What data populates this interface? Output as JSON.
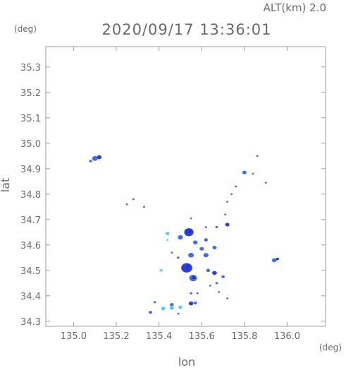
{
  "header": {
    "altitude_label": "ALT(km) 2.0",
    "datetime": "2020/09/17 13:36:01",
    "lat_unit": "(deg)",
    "lon_unit": "(deg)"
  },
  "axes": {
    "xlabel": "lon",
    "ylabel": "lat",
    "xlim": [
      134.87,
      136.18
    ],
    "ylim": [
      34.28,
      35.38
    ],
    "xticks": [
      "135.0",
      "135.2",
      "135.4",
      "135.6",
      "135.8",
      "136.0"
    ],
    "yticks": [
      "34.3",
      "34.4",
      "34.5",
      "34.6",
      "34.7",
      "34.8",
      "34.9",
      "35.0",
      "35.1",
      "35.2",
      "35.3"
    ],
    "grid": false
  },
  "chart_data": {
    "type": "radar-echo-map",
    "colors": {
      "light": "#5bc8f0",
      "mid": "#3f6ff0",
      "strong": "#2a3fe0",
      "dark": "#2632c8"
    },
    "echo_cells": [
      {
        "lon": 135.1,
        "lat": 34.94,
        "r": 0.013,
        "level": "mid"
      },
      {
        "lon": 135.12,
        "lat": 34.945,
        "r": 0.011,
        "level": "strong"
      },
      {
        "lon": 135.08,
        "lat": 34.93,
        "r": 0.007,
        "level": "mid"
      },
      {
        "lon": 135.8,
        "lat": 34.885,
        "r": 0.01,
        "level": "mid"
      },
      {
        "lon": 135.86,
        "lat": 34.95,
        "r": 0.004,
        "level": "mid"
      },
      {
        "lon": 135.84,
        "lat": 34.88,
        "r": 0.004,
        "level": "mid"
      },
      {
        "lon": 135.9,
        "lat": 34.845,
        "r": 0.004,
        "level": "mid"
      },
      {
        "lon": 135.76,
        "lat": 34.83,
        "r": 0.005,
        "level": "mid"
      },
      {
        "lon": 135.74,
        "lat": 34.8,
        "r": 0.004,
        "level": "mid"
      },
      {
        "lon": 135.72,
        "lat": 34.77,
        "r": 0.004,
        "level": "mid"
      },
      {
        "lon": 135.25,
        "lat": 34.76,
        "r": 0.004,
        "level": "mid"
      },
      {
        "lon": 135.28,
        "lat": 34.78,
        "r": 0.004,
        "level": "mid"
      },
      {
        "lon": 135.33,
        "lat": 34.75,
        "r": 0.004,
        "level": "mid"
      },
      {
        "lon": 135.71,
        "lat": 34.72,
        "r": 0.004,
        "level": "mid"
      },
      {
        "lon": 135.72,
        "lat": 34.68,
        "r": 0.01,
        "level": "strong"
      },
      {
        "lon": 135.67,
        "lat": 34.67,
        "r": 0.006,
        "level": "mid"
      },
      {
        "lon": 135.62,
        "lat": 34.67,
        "r": 0.005,
        "level": "mid"
      },
      {
        "lon": 135.55,
        "lat": 34.705,
        "r": 0.004,
        "level": "mid"
      },
      {
        "lon": 135.54,
        "lat": 34.65,
        "r": 0.022,
        "level": "strong"
      },
      {
        "lon": 135.5,
        "lat": 34.63,
        "r": 0.012,
        "level": "mid"
      },
      {
        "lon": 135.44,
        "lat": 34.645,
        "r": 0.009,
        "level": "light"
      },
      {
        "lon": 135.44,
        "lat": 34.62,
        "r": 0.004,
        "level": "light"
      },
      {
        "lon": 135.57,
        "lat": 34.61,
        "r": 0.011,
        "level": "mid"
      },
      {
        "lon": 135.62,
        "lat": 34.62,
        "r": 0.009,
        "level": "mid"
      },
      {
        "lon": 135.66,
        "lat": 34.59,
        "r": 0.01,
        "level": "mid"
      },
      {
        "lon": 135.6,
        "lat": 34.585,
        "r": 0.01,
        "level": "mid"
      },
      {
        "lon": 135.62,
        "lat": 34.56,
        "r": 0.012,
        "level": "mid"
      },
      {
        "lon": 135.55,
        "lat": 34.56,
        "r": 0.013,
        "level": "mid"
      },
      {
        "lon": 135.53,
        "lat": 34.51,
        "r": 0.026,
        "level": "strong"
      },
      {
        "lon": 135.56,
        "lat": 34.47,
        "r": 0.018,
        "level": "mid"
      },
      {
        "lon": 135.49,
        "lat": 34.55,
        "r": 0.006,
        "level": "mid"
      },
      {
        "lon": 135.46,
        "lat": 34.57,
        "r": 0.004,
        "level": "mid"
      },
      {
        "lon": 135.63,
        "lat": 34.5,
        "r": 0.009,
        "level": "mid"
      },
      {
        "lon": 135.66,
        "lat": 34.49,
        "r": 0.011,
        "level": "strong"
      },
      {
        "lon": 135.7,
        "lat": 34.475,
        "r": 0.008,
        "level": "mid"
      },
      {
        "lon": 135.67,
        "lat": 34.45,
        "r": 0.006,
        "level": "mid"
      },
      {
        "lon": 135.41,
        "lat": 34.5,
        "r": 0.007,
        "level": "light"
      },
      {
        "lon": 135.55,
        "lat": 34.41,
        "r": 0.006,
        "level": "mid"
      },
      {
        "lon": 135.58,
        "lat": 34.41,
        "r": 0.005,
        "level": "mid"
      },
      {
        "lon": 135.64,
        "lat": 34.44,
        "r": 0.005,
        "level": "mid"
      },
      {
        "lon": 135.68,
        "lat": 34.415,
        "r": 0.004,
        "level": "mid"
      },
      {
        "lon": 135.72,
        "lat": 34.39,
        "r": 0.003,
        "level": "mid"
      },
      {
        "lon": 135.55,
        "lat": 34.37,
        "r": 0.011,
        "level": "strong"
      },
      {
        "lon": 135.57,
        "lat": 34.372,
        "r": 0.008,
        "level": "mid"
      },
      {
        "lon": 135.46,
        "lat": 34.365,
        "r": 0.009,
        "level": "mid"
      },
      {
        "lon": 135.38,
        "lat": 34.375,
        "r": 0.006,
        "level": "mid"
      },
      {
        "lon": 135.42,
        "lat": 34.35,
        "r": 0.01,
        "level": "light"
      },
      {
        "lon": 135.46,
        "lat": 34.352,
        "r": 0.01,
        "level": "light"
      },
      {
        "lon": 135.5,
        "lat": 34.355,
        "r": 0.009,
        "level": "light"
      },
      {
        "lon": 135.36,
        "lat": 34.335,
        "r": 0.008,
        "level": "mid"
      },
      {
        "lon": 135.49,
        "lat": 34.33,
        "r": 0.004,
        "level": "mid"
      },
      {
        "lon": 135.94,
        "lat": 34.54,
        "r": 0.011,
        "level": "mid"
      },
      {
        "lon": 135.955,
        "lat": 34.545,
        "r": 0.007,
        "level": "strong"
      }
    ]
  }
}
